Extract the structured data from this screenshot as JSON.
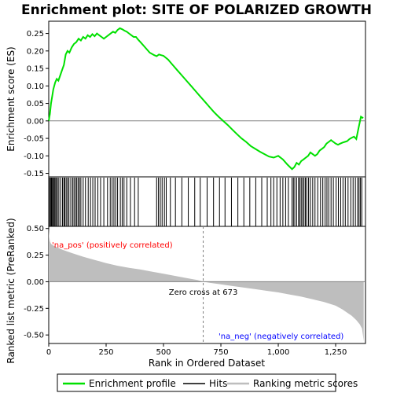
{
  "chart_data": {
    "type": "line",
    "title": "Enrichment plot: SITE OF POLARIZED GROWTH",
    "xlabel": "Rank in Ordered Dataset",
    "top_ylabel": "Enrichment score (ES)",
    "bottom_ylabel": "Ranked list metric (PreRanked)",
    "xlim": [
      0,
      1380
    ],
    "x_ticks": [
      "0",
      "250",
      "500",
      "750",
      "1,000",
      "1,250"
    ],
    "x_tick_values": [
      0,
      250,
      500,
      750,
      1000,
      1250
    ],
    "top_ylim": [
      -0.16,
      0.285
    ],
    "top_y_ticks": [
      "-0.15",
      "-0.10",
      "-0.05",
      "0.00",
      "0.05",
      "0.10",
      "0.15",
      "0.20",
      "0.25"
    ],
    "top_y_tick_values": [
      -0.15,
      -0.1,
      -0.05,
      0.0,
      0.05,
      0.1,
      0.15,
      0.2,
      0.25
    ],
    "bottom_ylim": [
      -0.58,
      0.52
    ],
    "bottom_y_ticks": [
      "-0.50",
      "-0.25",
      "0.00",
      "0.25",
      "0.50"
    ],
    "bottom_y_tick_values": [
      -0.5,
      -0.25,
      0.0,
      0.25,
      0.5
    ],
    "annotations": {
      "pos_label": "'na_pos' (positively correlated)",
      "neg_label": "'na_neg' (negatively correlated)",
      "zero_cross": "Zero cross at 673",
      "zero_cross_x": 673
    },
    "legend": {
      "placement": "bottom",
      "items": [
        "Enrichment profile",
        "Hits",
        "Ranking metric scores"
      ]
    },
    "colors": {
      "enrichment": "#00e000",
      "hits": "#000000",
      "metric_fill": "#bebebe",
      "pos_band": "#ff0000",
      "neg_band": "#0000ff"
    },
    "es_profile": {
      "x": [
        0,
        5,
        10,
        15,
        20,
        28,
        35,
        42,
        50,
        58,
        66,
        74,
        82,
        90,
        100,
        110,
        120,
        130,
        140,
        150,
        160,
        170,
        180,
        190,
        200,
        210,
        220,
        230,
        240,
        250,
        260,
        270,
        280,
        290,
        300,
        310,
        320,
        330,
        340,
        350,
        360,
        370,
        380,
        390,
        400,
        420,
        440,
        460,
        470,
        480,
        490,
        500,
        520,
        540,
        560,
        580,
        600,
        620,
        640,
        660,
        680,
        700,
        720,
        740,
        760,
        780,
        800,
        820,
        840,
        860,
        880,
        900,
        920,
        940,
        960,
        980,
        1000,
        1020,
        1040,
        1060,
        1070,
        1080,
        1090,
        1100,
        1110,
        1120,
        1130,
        1140,
        1150,
        1160,
        1170,
        1180,
        1190,
        1200,
        1210,
        1220,
        1230,
        1240,
        1250,
        1260,
        1270,
        1280,
        1290,
        1300,
        1310,
        1320,
        1330,
        1340,
        1350,
        1360,
        1370
      ],
      "y": [
        0.0,
        0.02,
        0.05,
        0.07,
        0.09,
        0.11,
        0.12,
        0.115,
        0.13,
        0.145,
        0.16,
        0.19,
        0.2,
        0.195,
        0.21,
        0.22,
        0.225,
        0.235,
        0.23,
        0.24,
        0.235,
        0.245,
        0.24,
        0.248,
        0.242,
        0.25,
        0.245,
        0.24,
        0.235,
        0.24,
        0.245,
        0.25,
        0.255,
        0.252,
        0.26,
        0.265,
        0.262,
        0.258,
        0.255,
        0.25,
        0.245,
        0.24,
        0.24,
        0.232,
        0.225,
        0.21,
        0.195,
        0.188,
        0.185,
        0.19,
        0.188,
        0.186,
        0.175,
        0.16,
        0.145,
        0.13,
        0.115,
        0.1,
        0.085,
        0.07,
        0.055,
        0.04,
        0.025,
        0.012,
        0.0,
        -0.012,
        -0.025,
        -0.038,
        -0.05,
        -0.06,
        -0.072,
        -0.08,
        -0.088,
        -0.095,
        -0.102,
        -0.105,
        -0.1,
        -0.11,
        -0.125,
        -0.138,
        -0.132,
        -0.12,
        -0.125,
        -0.115,
        -0.11,
        -0.105,
        -0.1,
        -0.09,
        -0.095,
        -0.1,
        -0.095,
        -0.085,
        -0.08,
        -0.075,
        -0.065,
        -0.06,
        -0.055,
        -0.06,
        -0.065,
        -0.068,
        -0.065,
        -0.062,
        -0.06,
        -0.058,
        -0.052,
        -0.048,
        -0.045,
        -0.052,
        -0.02,
        0.012,
        0.008
      ]
    },
    "hit_ranks": [
      4,
      8,
      12,
      16,
      20,
      24,
      28,
      33,
      38,
      44,
      52,
      60,
      66,
      70,
      76,
      82,
      88,
      96,
      104,
      110,
      116,
      122,
      128,
      134,
      140,
      150,
      160,
      172,
      182,
      192,
      202,
      214,
      226,
      240,
      256,
      268,
      276,
      284,
      292,
      300,
      312,
      320,
      328,
      340,
      356,
      374,
      390,
      470,
      478,
      486,
      494,
      504,
      512,
      530,
      552,
      580,
      608,
      636,
      660,
      690,
      718,
      744,
      768,
      796,
      824,
      850,
      876,
      902,
      928,
      952,
      968,
      980,
      994,
      1008,
      1020,
      1032,
      1044,
      1060,
      1066,
      1072,
      1080,
      1088,
      1094,
      1100,
      1106,
      1112,
      1118,
      1124,
      1132,
      1140,
      1150,
      1160,
      1172,
      1184,
      1194,
      1204,
      1212,
      1220,
      1230,
      1240,
      1252,
      1262,
      1272,
      1282,
      1292,
      1304,
      1316,
      1326,
      1336,
      1346,
      1352,
      1358,
      1364
    ],
    "metric_profile": {
      "x": [
        0,
        2,
        5,
        10,
        20,
        40,
        60,
        100,
        150,
        200,
        250,
        300,
        350,
        400,
        450,
        500,
        550,
        600,
        650,
        673,
        700,
        750,
        800,
        850,
        900,
        950,
        1000,
        1050,
        1100,
        1150,
        1200,
        1250,
        1280,
        1300,
        1320,
        1340,
        1355,
        1365,
        1370,
        1372
      ],
      "y": [
        0.5,
        0.42,
        0.38,
        0.355,
        0.34,
        0.32,
        0.3,
        0.27,
        0.235,
        0.205,
        0.175,
        0.15,
        0.13,
        0.115,
        0.095,
        0.075,
        0.055,
        0.035,
        0.015,
        0.0,
        -0.01,
        -0.025,
        -0.04,
        -0.055,
        -0.07,
        -0.085,
        -0.1,
        -0.12,
        -0.14,
        -0.165,
        -0.19,
        -0.225,
        -0.26,
        -0.29,
        -0.32,
        -0.36,
        -0.4,
        -0.44,
        -0.52,
        -0.56
      ]
    }
  }
}
